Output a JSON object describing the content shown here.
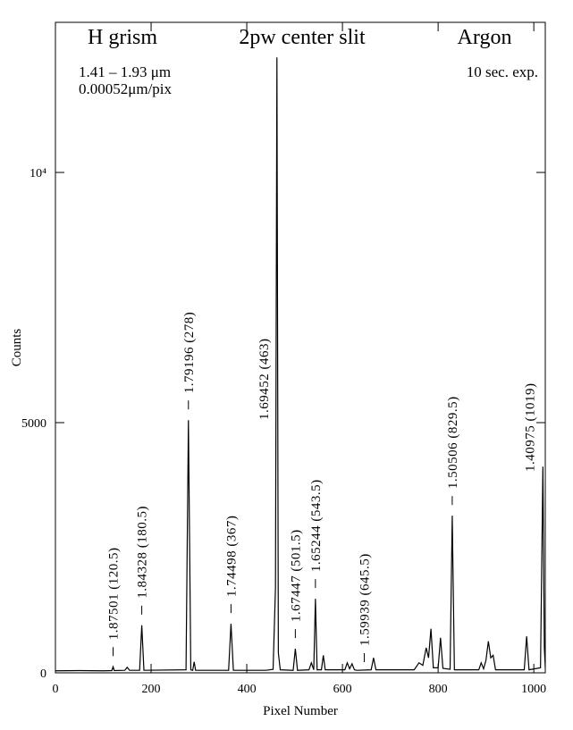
{
  "chart_data": {
    "type": "line",
    "title": [
      "H grism",
      "2pw center slit",
      "Argon"
    ],
    "notes_left": [
      "1.41 – 1.93 μm",
      "0.00052μm/pix"
    ],
    "note_right": "10 sec. exp.",
    "x_label": "Pixel Number",
    "y_label": "Counts",
    "xlim": [
      0,
      1024
    ],
    "ylim": [
      0,
      13000
    ],
    "xticks": [
      0,
      200,
      400,
      600,
      800,
      1000
    ],
    "yticks": [
      0,
      5000,
      {
        "value": 10000,
        "label": "10⁴"
      }
    ],
    "color": "#000000",
    "x": [
      0,
      50,
      100,
      118,
      120.5,
      123,
      145,
      150,
      155,
      176,
      180.5,
      185,
      273,
      278,
      283,
      287,
      290,
      293,
      362,
      367,
      372,
      440,
      455,
      460,
      463,
      466,
      470,
      497,
      501.5,
      506,
      530,
      535,
      540,
      543.5,
      547,
      556,
      560,
      564,
      605,
      610,
      615,
      620,
      625,
      630,
      660,
      665,
      670,
      750,
      760,
      768,
      775,
      780,
      785,
      790,
      800,
      805,
      810,
      825,
      829.5,
      834,
      885,
      890,
      895,
      900,
      905,
      910,
      915,
      920,
      980,
      985,
      990,
      1014,
      1019,
      1022,
      1024
    ],
    "values": [
      40,
      45,
      40,
      45,
      120,
      45,
      50,
      110,
      50,
      50,
      950,
      50,
      60,
      5050,
      60,
      50,
      220,
      50,
      50,
      980,
      50,
      50,
      70,
      1700,
      12300,
      400,
      60,
      50,
      480,
      50,
      60,
      200,
      60,
      1480,
      60,
      60,
      350,
      60,
      60,
      200,
      80,
      180,
      60,
      50,
      60,
      300,
      60,
      60,
      200,
      150,
      500,
      300,
      880,
      100,
      100,
      700,
      90,
      70,
      3140,
      60,
      60,
      200,
      80,
      250,
      630,
      300,
      350,
      60,
      60,
      730,
      60,
      100,
      4120,
      500,
      100
    ],
    "annotations": [
      {
        "text": "1.87501 (120.5)",
        "x": 120.5
      },
      {
        "text": "1.84328 (180.5)",
        "x": 180.5
      },
      {
        "text": "1.79196 (278)",
        "x": 278
      },
      {
        "text": "1.74498 (367)",
        "x": 367
      },
      {
        "text": "1.69452 (463)",
        "x": 463
      },
      {
        "text": "1.67447 (501.5)",
        "x": 501.5
      },
      {
        "text": "1.65244 (543.5)",
        "x": 543.5
      },
      {
        "text": "1.59939 (645.5)",
        "x": 645.5
      },
      {
        "text": "1.50506 (829.5)",
        "x": 829.5
      },
      {
        "text": "1.40975 (1019)",
        "x": 1019
      }
    ]
  }
}
